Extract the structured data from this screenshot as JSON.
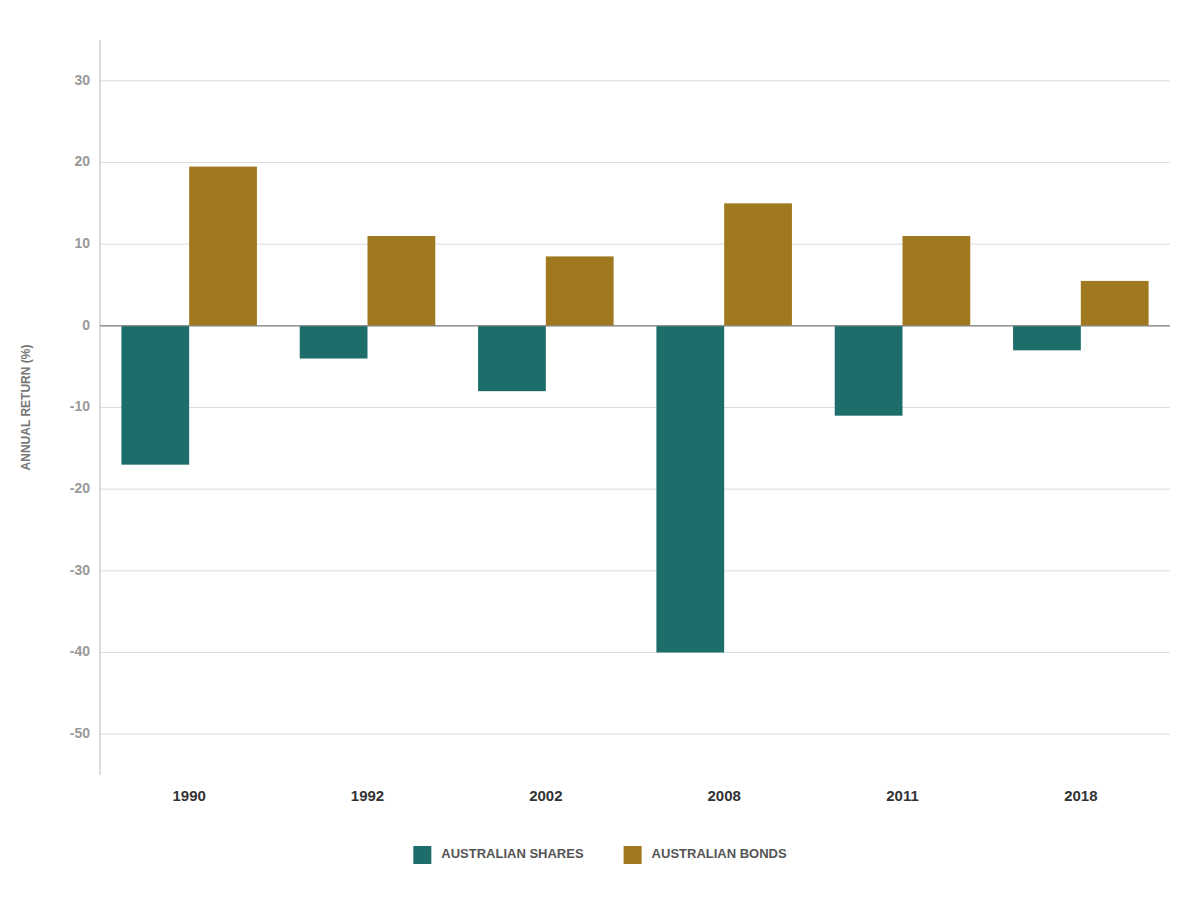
{
  "chart_data": {
    "type": "bar",
    "categories": [
      "1990",
      "1992",
      "2002",
      "2008",
      "2011",
      "2018"
    ],
    "series": [
      {
        "name": "AUSTRALIAN SHARES",
        "color": "#1d6e6a",
        "values": [
          -17,
          -4,
          -8,
          -40,
          -11,
          -3
        ]
      },
      {
        "name": "AUSTRALIAN BONDS",
        "color": "#a07820",
        "values": [
          19.5,
          11,
          8.5,
          15,
          11,
          5.5
        ]
      }
    ],
    "y_label": "ANNUAL RETURN (%)",
    "ylim": [
      -55,
      35
    ],
    "yticks": [
      30,
      20,
      10,
      0,
      -10,
      -20,
      -30,
      -40,
      -50
    ],
    "grid": true,
    "legend": "bottom"
  }
}
